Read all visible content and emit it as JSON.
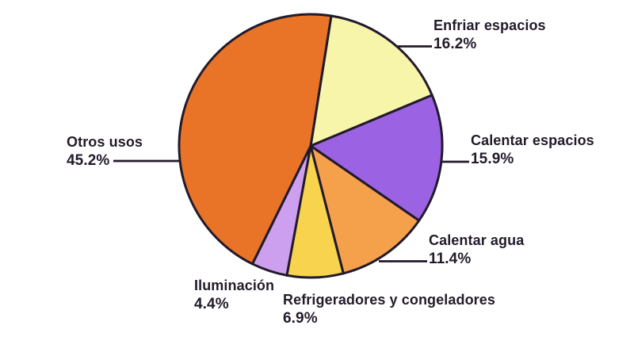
{
  "chart_data": {
    "type": "pie",
    "unit": "%",
    "start_angle_deg": 81,
    "direction": "clockwise",
    "legend_position": "none",
    "labels_outside": true,
    "background": "#ffffff",
    "stroke_color": "#221a2b",
    "text_color": "#221b2a",
    "slices": [
      {
        "id": "enfriar-espacios",
        "label": "Enfriar espacios",
        "value": 16.2,
        "pct_label": "16.2%",
        "color": "#f6f5aa"
      },
      {
        "id": "calentar-espacios",
        "label": "Calentar espacios",
        "value": 15.9,
        "pct_label": "15.9%",
        "color": "#9b63e3"
      },
      {
        "id": "calentar-agua",
        "label": "Calentar agua",
        "value": 11.4,
        "pct_label": "11.4%",
        "color": "#f5a14c"
      },
      {
        "id": "refrigeradores-congeladores",
        "label": "Refrigeradores y congeladores",
        "value": 6.9,
        "pct_label": "6.9%",
        "color": "#f8d34d"
      },
      {
        "id": "iluminacion",
        "label": "Iluminación",
        "value": 4.4,
        "pct_label": "4.4%",
        "color": "#cda0ef"
      },
      {
        "id": "otros-usos",
        "label": "Otros usos",
        "value": 45.2,
        "pct_label": "45.2%",
        "color": "#e97327"
      }
    ]
  }
}
